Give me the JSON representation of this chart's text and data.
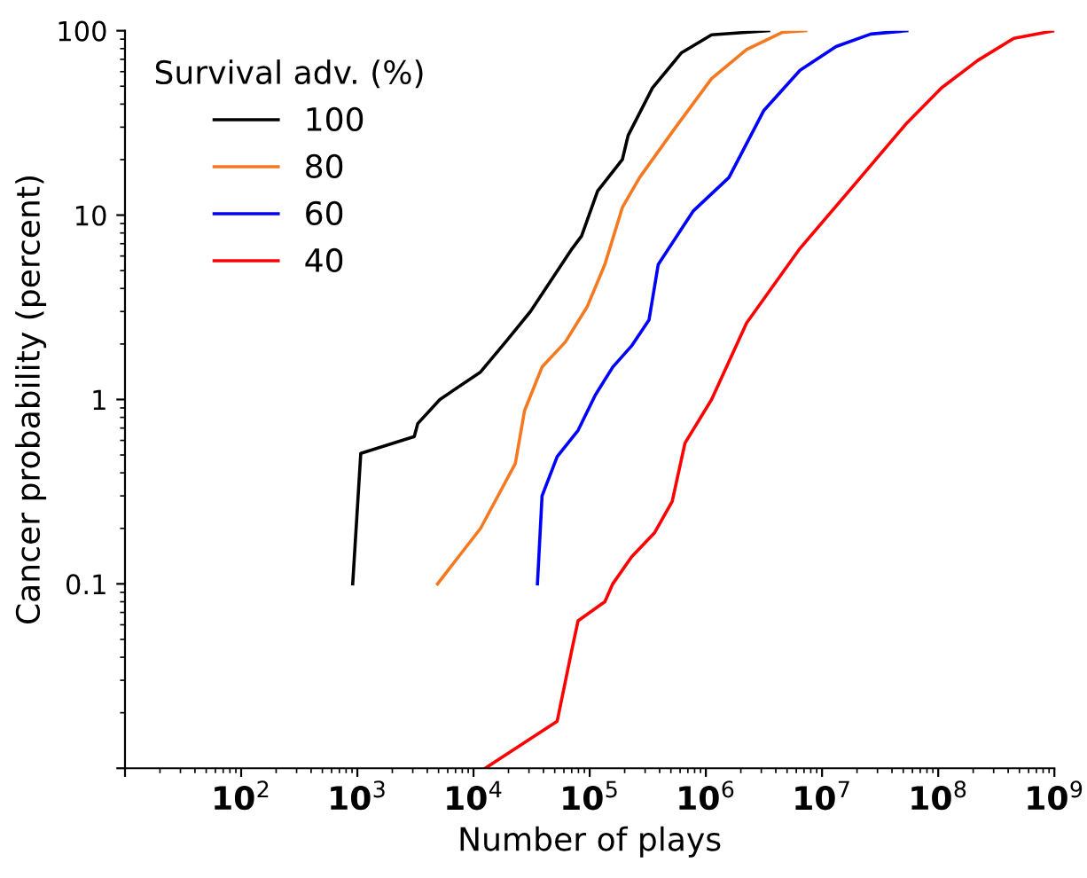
{
  "chart_data": {
    "type": "line",
    "xlabel": "Number of plays",
    "ylabel": "Cancer probability (percent)",
    "legend_title": "Survival adv. (%)",
    "legend": "top left",
    "log": "xy",
    "grid": false,
    "marker": "none",
    "line_style": "solid",
    "xlim": [
      10,
      1000000000
    ],
    "ylim": [
      0.01,
      100
    ],
    "xticks": [
      {
        "value": 10,
        "label": null
      },
      {
        "value": 100,
        "label": "10$^{2}$"
      },
      {
        "value": 1000,
        "label": "10$^{3}$"
      },
      {
        "value": 10000,
        "label": "10$^{4}$"
      },
      {
        "value": 100000,
        "label": "10$^{5}$"
      },
      {
        "value": 1000000,
        "label": "10$^{6}$"
      },
      {
        "value": 10000000,
        "label": "10$^{7}$"
      },
      {
        "value": 100000000,
        "label": "10$^{8}$"
      },
      {
        "value": 1000000000,
        "label": "10$^{9}$"
      }
    ],
    "yticks": [
      {
        "value": 0.01,
        "label": null
      },
      0.1,
      1,
      10,
      100
    ],
    "series": [
      {
        "name": "100",
        "color": "#000000",
        "x": [
          912,
          1070,
          3090,
          3310,
          5130,
          11500,
          19500,
          30900,
          70800,
          85100,
          117000,
          191000,
          214000,
          347000,
          617000,
          1120000,
          3470000
        ],
        "values": [
          0.1,
          0.51,
          0.63,
          0.74,
          1.0,
          1.41,
          2.1,
          3.0,
          6.6,
          7.7,
          13.5,
          20,
          27,
          49,
          76,
          95,
          100
        ]
      },
      {
        "name": "80",
        "color": "#f47920",
        "x": [
          4900,
          11500,
          22900,
          27500,
          38900,
          61700,
          95500,
          135000,
          191000,
          269000,
          550000,
          1120000,
          2240000,
          4570000,
          7240000
        ],
        "values": [
          0.1,
          0.2,
          0.45,
          0.87,
          1.5,
          2.05,
          3.2,
          5.4,
          11,
          16,
          30,
          55,
          79,
          98,
          100
        ]
      },
      {
        "name": "60",
        "color": "#0000ff",
        "x": [
          35500,
          38900,
          52500,
          79400,
          112000,
          158000,
          229000,
          324000,
          389000,
          776000,
          1580000,
          3160000,
          6460000,
          13200000,
          26300000,
          53700000
        ],
        "values": [
          0.1,
          0.3,
          0.49,
          0.68,
          1.06,
          1.5,
          1.95,
          2.7,
          5.4,
          10.5,
          16,
          37,
          61,
          82,
          96,
          100
        ]
      },
      {
        "name": "40",
        "color": "#ff0000",
        "x": [
          12600,
          52500,
          70800,
          79400,
          135000,
          158000,
          229000,
          363000,
          513000,
          661000,
          1120000,
          2240000,
          6460000,
          18600000,
          53700000,
          107000000,
          219000000,
          447000000,
          1000000000
        ],
        "values": [
          0.01,
          0.018,
          0.045,
          0.063,
          0.08,
          0.1,
          0.14,
          0.19,
          0.28,
          0.58,
          1.0,
          2.6,
          6.6,
          14.4,
          31.6,
          49,
          69,
          91,
          100
        ]
      }
    ]
  }
}
